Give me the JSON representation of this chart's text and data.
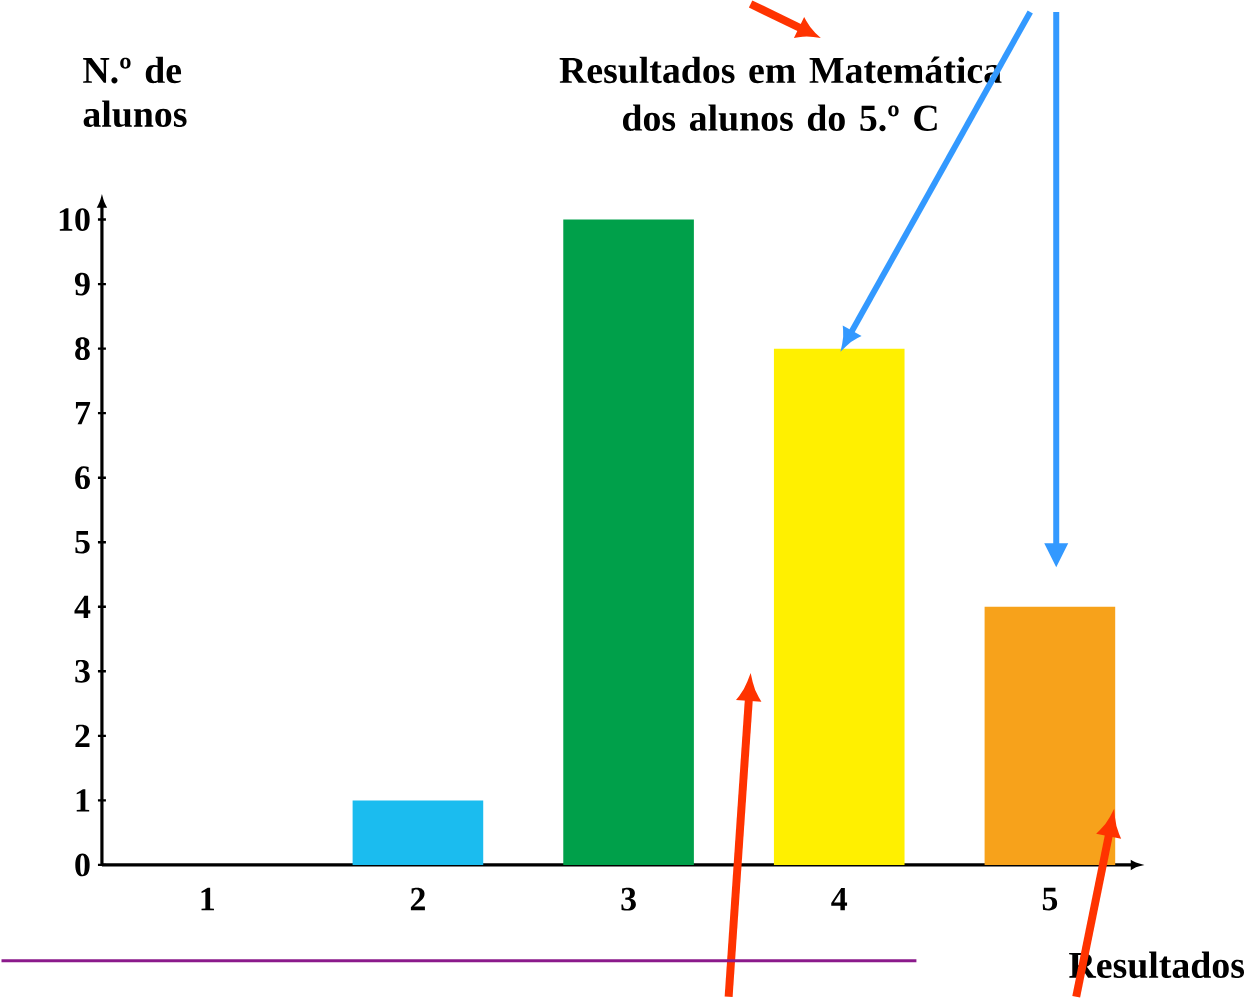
{
  "chart_data": {
    "type": "bar",
    "title": "Resultados em Matemática dos alunos do 5.º C",
    "xlabel": "Resultados",
    "ylabel": "N.º de alunos",
    "categories": [
      "1",
      "2",
      "3",
      "4",
      "5"
    ],
    "values": [
      0,
      1,
      10,
      8,
      4
    ],
    "colors": [
      "#1bbcef",
      "#1bbcef",
      "#00a04a",
      "#fff000",
      "#f7a21b"
    ],
    "ylim": [
      0,
      10
    ],
    "yticks": [
      0,
      1,
      2,
      3,
      4,
      5,
      6,
      7,
      8,
      9,
      10
    ],
    "grid": false
  }
}
